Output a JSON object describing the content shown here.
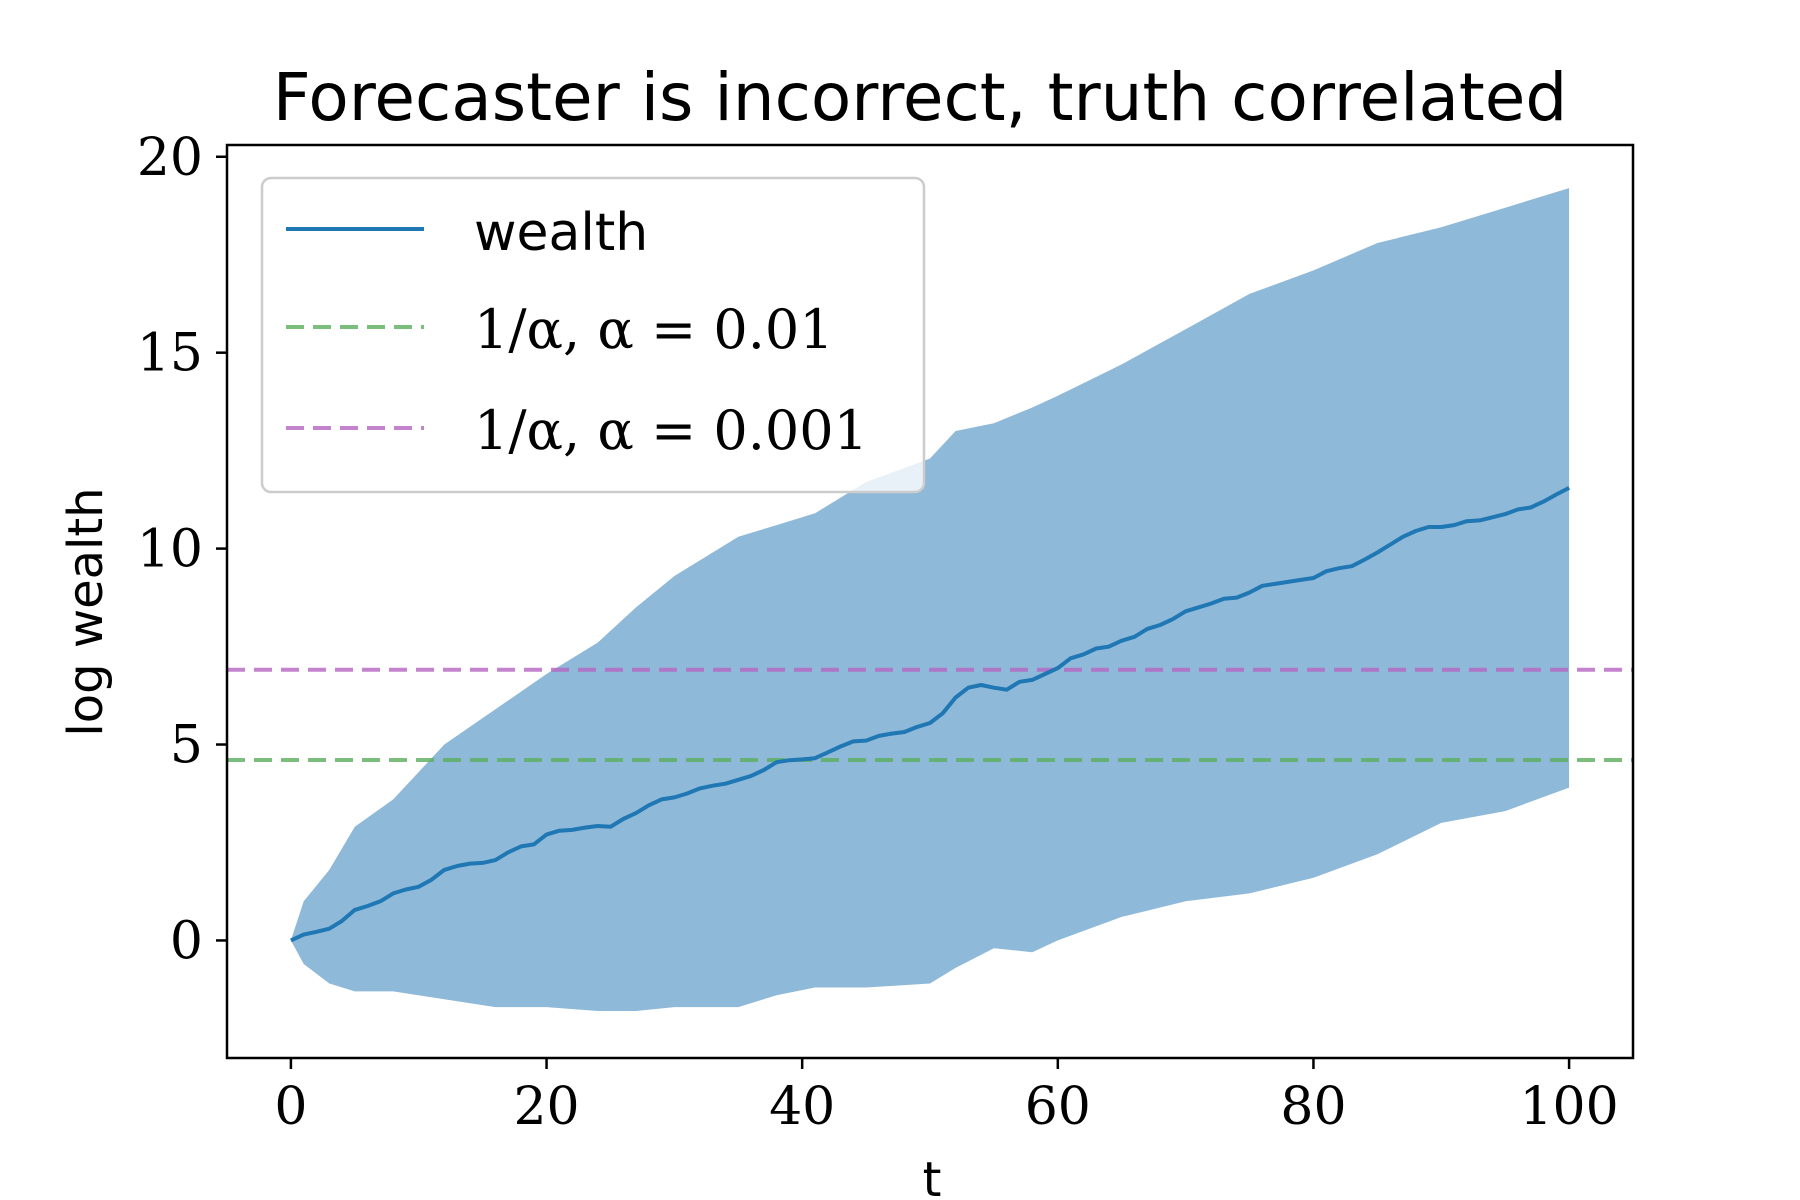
{
  "chart_data": {
    "type": "line",
    "title": "Forecaster is incorrect, truth correlated",
    "xlabel": "t",
    "ylabel": "log wealth",
    "xlim": [
      -5,
      105
    ],
    "ylim": [
      -3,
      20.3
    ],
    "xticks": [
      0,
      20,
      40,
      60,
      80,
      100
    ],
    "yticks": [
      0,
      5,
      10,
      15,
      20
    ],
    "legend_position": "top-left",
    "colors": {
      "wealth": "#1f77b4",
      "band": "#8fb9d9",
      "alpha_001": "#5aae5a",
      "alpha_0001": "#b565c1"
    },
    "wealth_band": {
      "x": [
        0,
        1,
        3,
        5,
        8,
        12,
        16,
        20,
        24,
        27,
        30,
        35,
        38,
        41,
        45,
        50,
        52,
        55,
        58,
        60,
        65,
        70,
        75,
        80,
        85,
        90,
        95,
        100
      ],
      "upper": [
        0,
        1.0,
        1.8,
        2.9,
        3.6,
        5.0,
        5.9,
        6.8,
        7.6,
        8.5,
        9.3,
        10.3,
        10.6,
        10.9,
        11.7,
        12.3,
        13.0,
        13.2,
        13.6,
        13.9,
        14.7,
        15.6,
        16.5,
        17.1,
        17.8,
        18.2,
        18.7,
        19.2
      ],
      "lower": [
        0,
        -0.6,
        -1.1,
        -1.3,
        -1.3,
        -1.5,
        -1.7,
        -1.7,
        -1.8,
        -1.8,
        -1.7,
        -1.7,
        -1.4,
        -1.2,
        -1.2,
        -1.1,
        -0.7,
        -0.2,
        -0.3,
        0.0,
        0.6,
        1.0,
        1.2,
        1.6,
        2.2,
        3.0,
        3.3,
        3.9
      ]
    },
    "series": [
      {
        "name": "wealth",
        "x": [
          0,
          1,
          2,
          3,
          4,
          5,
          6,
          7,
          8,
          9,
          10,
          11,
          12,
          13,
          14,
          15,
          16,
          17,
          18,
          19,
          20,
          21,
          22,
          23,
          24,
          25,
          26,
          27,
          28,
          29,
          30,
          31,
          32,
          33,
          34,
          35,
          36,
          37,
          38,
          39,
          40,
          41,
          42,
          43,
          44,
          45,
          46,
          47,
          48,
          49,
          50,
          51,
          52,
          53,
          54,
          55,
          56,
          57,
          58,
          59,
          60,
          61,
          62,
          63,
          64,
          65,
          66,
          67,
          68,
          69,
          70,
          71,
          72,
          73,
          74,
          75,
          76,
          77,
          78,
          79,
          80,
          81,
          82,
          83,
          84,
          85,
          86,
          87,
          88,
          89,
          90,
          91,
          92,
          93,
          94,
          95,
          96,
          97,
          98,
          99,
          100
        ],
        "y": [
          0.0,
          0.15,
          0.22,
          0.3,
          0.5,
          0.78,
          0.88,
          1.0,
          1.2,
          1.3,
          1.37,
          1.55,
          1.8,
          1.9,
          1.96,
          1.98,
          2.05,
          2.25,
          2.4,
          2.45,
          2.7,
          2.8,
          2.82,
          2.88,
          2.92,
          2.9,
          3.1,
          3.25,
          3.45,
          3.6,
          3.65,
          3.75,
          3.88,
          3.95,
          4.0,
          4.1,
          4.2,
          4.35,
          4.55,
          4.6,
          4.62,
          4.65,
          4.8,
          4.95,
          5.08,
          5.1,
          5.22,
          5.28,
          5.32,
          5.45,
          5.55,
          5.8,
          6.2,
          6.45,
          6.52,
          6.45,
          6.4,
          6.6,
          6.65,
          6.8,
          6.95,
          7.2,
          7.3,
          7.45,
          7.5,
          7.65,
          7.75,
          7.95,
          8.05,
          8.2,
          8.4,
          8.5,
          8.6,
          8.72,
          8.75,
          8.88,
          9.05,
          9.1,
          9.15,
          9.2,
          9.25,
          9.42,
          9.5,
          9.55,
          9.72,
          9.9,
          10.1,
          10.3,
          10.45,
          10.55,
          10.55,
          10.6,
          10.7,
          10.72,
          10.8,
          10.88,
          11.0,
          11.05,
          11.2,
          11.38,
          11.55
        ]
      },
      {
        "name": "1/α, α = 0.01",
        "y_const": 4.6052
      },
      {
        "name": "1/α, α = 0.001",
        "y_const": 6.9078
      }
    ]
  }
}
